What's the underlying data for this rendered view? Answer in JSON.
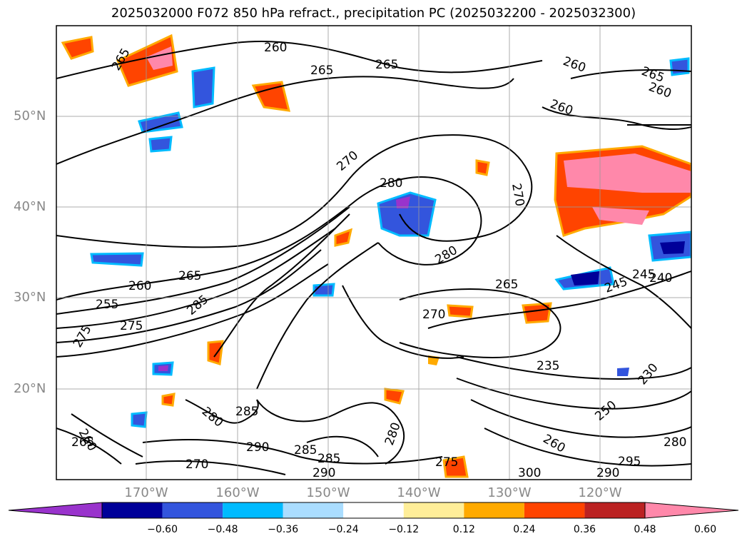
{
  "title": "2025032000 F072 850 hPa refract., precipitation PC (2025032200 - 2025032300)",
  "map": {
    "lat_labels": [
      "50°N",
      "40°N",
      "30°N",
      "20°N"
    ],
    "lon_labels": [
      "170°W",
      "160°W",
      "150°W",
      "140°W",
      "130°W",
      "120°W"
    ],
    "contour_labels": [
      "265",
      "260",
      "265",
      "265",
      "265",
      "260",
      "270",
      "280",
      "270",
      "280",
      "265",
      "260",
      "255",
      "275",
      "285",
      "275",
      "270",
      "265",
      "245",
      "240",
      "235",
      "230",
      "250",
      "280",
      "290",
      "295",
      "300",
      "285",
      "290",
      "280",
      "285",
      "275",
      "260",
      "265",
      "260",
      "280",
      "270",
      "260",
      "260",
      "245",
      "290",
      "285"
    ]
  },
  "colorbar": {
    "ticks": [
      "−0.60",
      "−0.48",
      "−0.36",
      "−0.24",
      "−0.12",
      "0.12",
      "0.24",
      "0.36",
      "0.48",
      "0.60"
    ],
    "colors": [
      "#9933cc",
      "#000099",
      "#3355dd",
      "#00bbff",
      "#aaddff",
      "#ffffff",
      "#ffee99",
      "#ffaa00",
      "#ff4400",
      "#bb2222",
      "#ff88aa"
    ]
  }
}
